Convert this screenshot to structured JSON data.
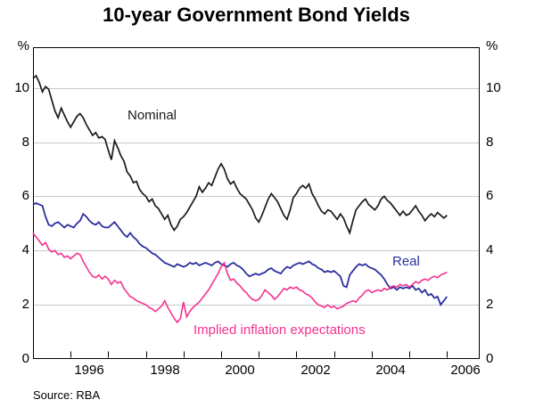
{
  "title": "10-year Government Bond Yields",
  "source_note": "Source: RBA",
  "axes": {
    "y_unit_left": "%",
    "y_unit_right": "%",
    "y_ticks": [
      0,
      2,
      4,
      6,
      8,
      10
    ],
    "grid_values": [
      2,
      4,
      6,
      8,
      10
    ],
    "x_tick_years": [
      1996,
      1997,
      1998,
      1999,
      2000,
      2001,
      2002,
      2003,
      2004,
      2005,
      2006
    ],
    "x_label_years": [
      "1996",
      "1998",
      "2000",
      "2002",
      "2004",
      "2006"
    ]
  },
  "chart_data": {
    "type": "line",
    "title": "10-year Government Bond Yields",
    "xlabel": "",
    "ylabel": "%",
    "ylim": [
      0,
      11.5
    ],
    "xlim": [
      1995.0,
      2006.87
    ],
    "grid": true,
    "legend_position": "inline-annotations",
    "x_start": 1995.0,
    "x_interval": 0.0833333,
    "series": [
      {
        "name": "Nominal",
        "color": "#1a1a1a",
        "values": [
          10.35,
          10.45,
          10.2,
          9.85,
          10.05,
          9.95,
          9.55,
          9.15,
          8.9,
          9.25,
          9.0,
          8.75,
          8.55,
          8.75,
          8.95,
          9.05,
          8.9,
          8.65,
          8.45,
          8.25,
          8.35,
          8.15,
          8.2,
          8.1,
          7.7,
          7.35,
          8.05,
          7.8,
          7.5,
          7.3,
          6.9,
          6.75,
          6.5,
          6.55,
          6.25,
          6.1,
          6.0,
          5.8,
          5.9,
          5.65,
          5.55,
          5.35,
          5.15,
          5.3,
          4.95,
          4.75,
          4.9,
          5.15,
          5.25,
          5.4,
          5.6,
          5.8,
          6.0,
          6.35,
          6.15,
          6.3,
          6.5,
          6.4,
          6.7,
          7.0,
          7.2,
          7.0,
          6.65,
          6.45,
          6.55,
          6.3,
          6.1,
          6.0,
          5.9,
          5.7,
          5.5,
          5.2,
          5.05,
          5.3,
          5.6,
          5.9,
          6.1,
          5.95,
          5.8,
          5.55,
          5.3,
          5.15,
          5.5,
          5.95,
          6.1,
          6.3,
          6.4,
          6.3,
          6.45,
          6.1,
          5.9,
          5.65,
          5.45,
          5.35,
          5.5,
          5.45,
          5.3,
          5.15,
          5.35,
          5.2,
          4.9,
          4.65,
          5.1,
          5.5,
          5.65,
          5.8,
          5.9,
          5.7,
          5.6,
          5.5,
          5.65,
          5.9,
          6.0,
          5.85,
          5.75,
          5.6,
          5.45,
          5.3,
          5.45,
          5.3,
          5.35,
          5.5,
          5.65,
          5.45,
          5.3,
          5.1,
          5.25,
          5.35,
          5.25,
          5.4,
          5.3,
          5.2,
          5.3
        ]
      },
      {
        "name": "Real",
        "color": "#2b2f9e",
        "values": [
          5.7,
          5.75,
          5.7,
          5.65,
          5.25,
          4.95,
          4.9,
          5.0,
          5.05,
          4.95,
          4.85,
          4.95,
          4.9,
          4.85,
          5.0,
          5.1,
          5.35,
          5.25,
          5.1,
          5.0,
          4.95,
          5.05,
          4.9,
          4.85,
          4.85,
          4.95,
          5.05,
          4.9,
          4.75,
          4.6,
          4.5,
          4.65,
          4.5,
          4.4,
          4.25,
          4.15,
          4.1,
          4.0,
          3.9,
          3.85,
          3.75,
          3.65,
          3.55,
          3.5,
          3.45,
          3.4,
          3.5,
          3.45,
          3.4,
          3.45,
          3.55,
          3.5,
          3.55,
          3.45,
          3.5,
          3.55,
          3.5,
          3.45,
          3.55,
          3.6,
          3.5,
          3.45,
          3.4,
          3.5,
          3.55,
          3.45,
          3.4,
          3.3,
          3.15,
          3.05,
          3.1,
          3.15,
          3.1,
          3.15,
          3.2,
          3.3,
          3.35,
          3.25,
          3.2,
          3.15,
          3.3,
          3.4,
          3.35,
          3.45,
          3.5,
          3.55,
          3.5,
          3.55,
          3.6,
          3.5,
          3.45,
          3.35,
          3.3,
          3.2,
          3.25,
          3.2,
          3.25,
          3.15,
          3.05,
          2.7,
          2.65,
          3.1,
          3.25,
          3.4,
          3.5,
          3.45,
          3.5,
          3.4,
          3.35,
          3.3,
          3.2,
          3.1,
          2.95,
          2.75,
          2.6,
          2.65,
          2.55,
          2.65,
          2.6,
          2.65,
          2.6,
          2.7,
          2.55,
          2.6,
          2.45,
          2.55,
          2.35,
          2.4,
          2.25,
          2.3,
          2.0,
          2.15,
          2.3
        ]
      },
      {
        "name": "Implied inflation expectations",
        "color": "#f5318f",
        "values": [
          4.65,
          4.5,
          4.35,
          4.2,
          4.3,
          4.05,
          3.95,
          4.0,
          3.85,
          3.9,
          3.75,
          3.8,
          3.7,
          3.8,
          3.9,
          3.85,
          3.6,
          3.4,
          3.2,
          3.05,
          3.0,
          3.1,
          2.95,
          3.05,
          2.95,
          2.75,
          2.9,
          2.8,
          2.85,
          2.6,
          2.45,
          2.3,
          2.25,
          2.15,
          2.1,
          2.05,
          2.0,
          1.9,
          1.85,
          1.75,
          1.85,
          1.95,
          2.15,
          1.9,
          1.7,
          1.5,
          1.35,
          1.5,
          2.1,
          1.55,
          1.75,
          1.9,
          2.0,
          2.1,
          2.25,
          2.4,
          2.55,
          2.75,
          2.95,
          3.15,
          3.4,
          3.55,
          3.15,
          2.9,
          2.95,
          2.8,
          2.7,
          2.55,
          2.45,
          2.3,
          2.2,
          2.15,
          2.2,
          2.35,
          2.55,
          2.45,
          2.35,
          2.2,
          2.3,
          2.45,
          2.6,
          2.55,
          2.65,
          2.6,
          2.65,
          2.55,
          2.5,
          2.4,
          2.35,
          2.25,
          2.1,
          2.0,
          1.95,
          1.9,
          2.0,
          1.9,
          1.95,
          1.85,
          1.9,
          1.95,
          2.05,
          2.1,
          2.15,
          2.1,
          2.25,
          2.35,
          2.5,
          2.55,
          2.45,
          2.5,
          2.55,
          2.5,
          2.6,
          2.55,
          2.65,
          2.7,
          2.65,
          2.75,
          2.7,
          2.75,
          2.65,
          2.75,
          2.85,
          2.8,
          2.9,
          2.95,
          2.9,
          3.0,
          3.05,
          3.0,
          3.1,
          3.15,
          3.2
        ]
      }
    ],
    "colors": {
      "grid": "#c6cbcb",
      "axis": "#000000",
      "background": "#ffffff"
    }
  }
}
